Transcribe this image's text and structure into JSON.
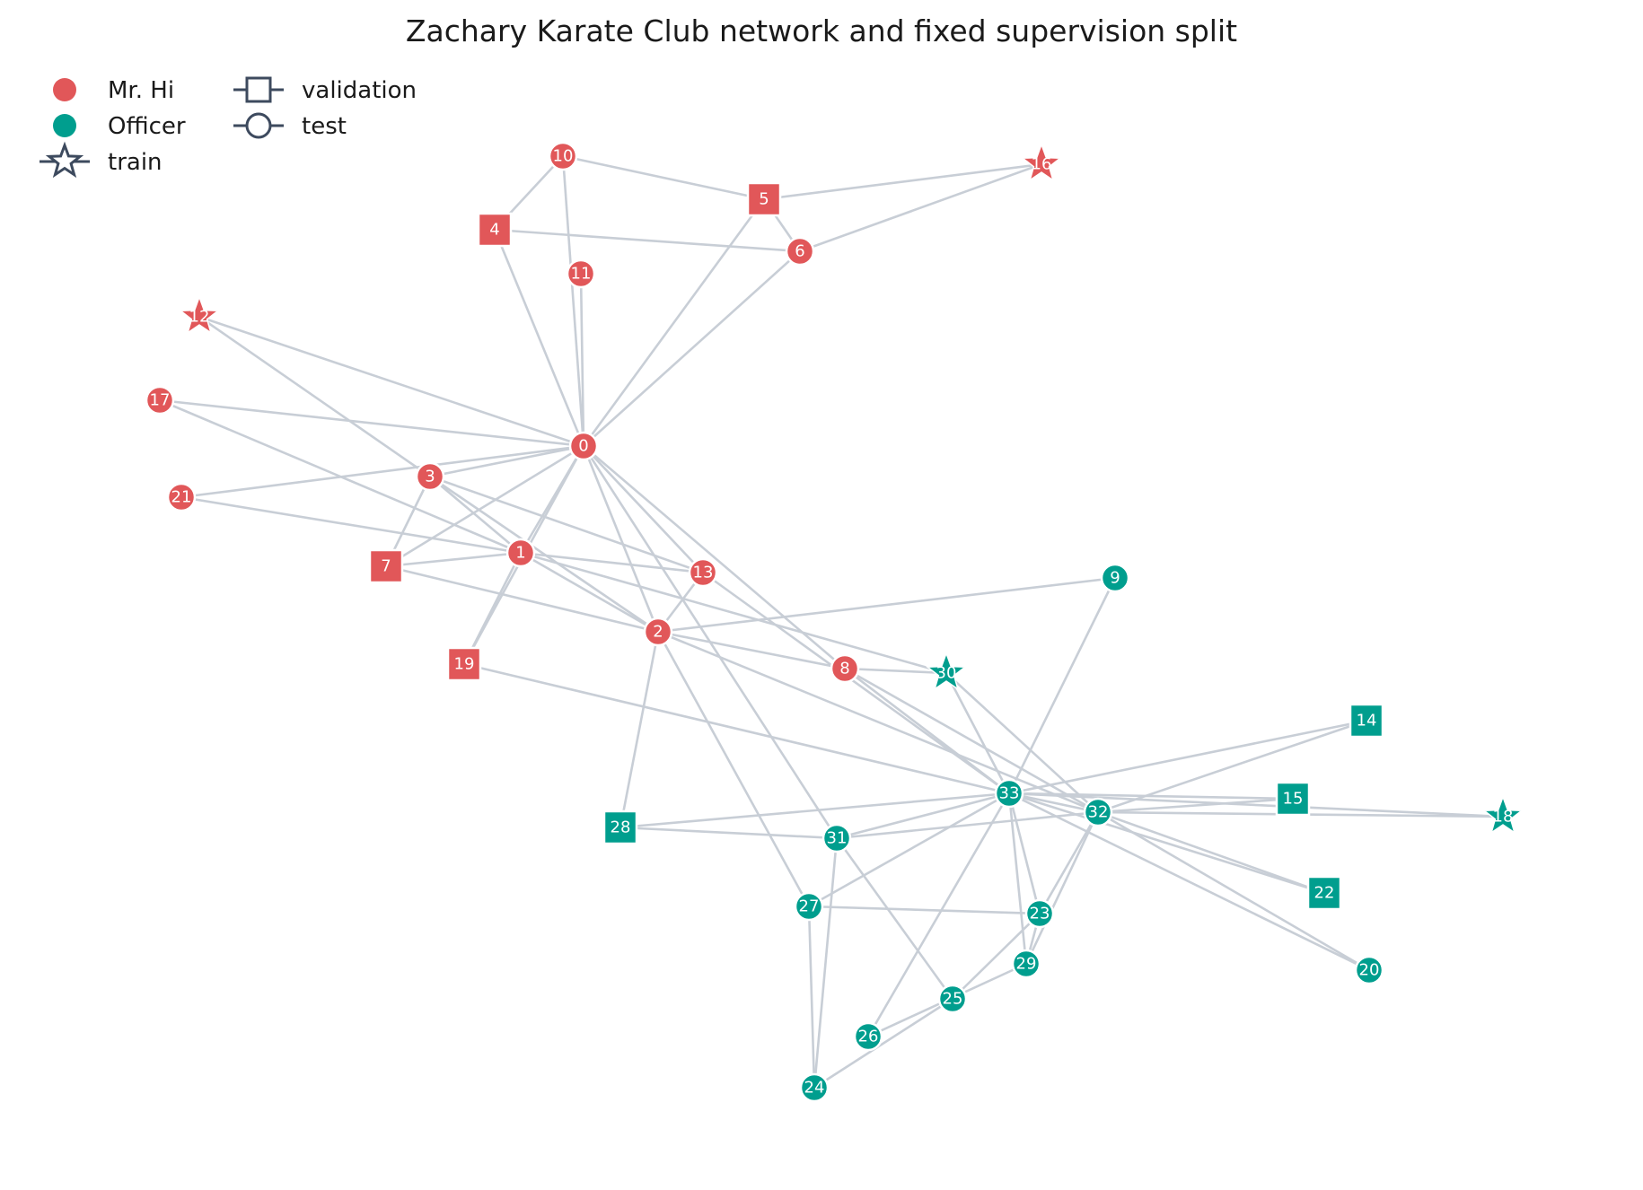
{
  "title": "Zachary Karate Club network and fixed supervision split",
  "colors": {
    "Mr. Hi": "#e15759",
    "Officer": "#009e8e",
    "edge": "#c8ced6",
    "legend_marker": "#3d4a5e",
    "label": "#ffffff"
  },
  "legend": {
    "groups": [
      {
        "label": "Mr. Hi",
        "icon": "filled-circle"
      },
      {
        "label": "Officer",
        "icon": "filled-circle"
      }
    ],
    "splits": [
      {
        "label": "train",
        "icon": "star-line-icon"
      },
      {
        "label": "validation",
        "icon": "square-line-icon"
      },
      {
        "label": "test",
        "icon": "circle-line-icon"
      }
    ]
  },
  "split_shapes": {
    "train": "star",
    "validation": "square",
    "test": "circle"
  },
  "nodes": [
    {
      "id": "0",
      "group": "Mr. Hi",
      "split": "test"
    },
    {
      "id": "1",
      "group": "Mr. Hi",
      "split": "test"
    },
    {
      "id": "2",
      "group": "Mr. Hi",
      "split": "test"
    },
    {
      "id": "3",
      "group": "Mr. Hi",
      "split": "test"
    },
    {
      "id": "4",
      "group": "Mr. Hi",
      "split": "validation"
    },
    {
      "id": "5",
      "group": "Mr. Hi",
      "split": "validation"
    },
    {
      "id": "6",
      "group": "Mr. Hi",
      "split": "test"
    },
    {
      "id": "7",
      "group": "Mr. Hi",
      "split": "validation"
    },
    {
      "id": "8",
      "group": "Mr. Hi",
      "split": "test"
    },
    {
      "id": "9",
      "group": "Officer",
      "split": "test"
    },
    {
      "id": "10",
      "group": "Mr. Hi",
      "split": "test"
    },
    {
      "id": "11",
      "group": "Mr. Hi",
      "split": "test"
    },
    {
      "id": "12",
      "group": "Mr. Hi",
      "split": "train"
    },
    {
      "id": "13",
      "group": "Mr. Hi",
      "split": "test"
    },
    {
      "id": "14",
      "group": "Officer",
      "split": "validation"
    },
    {
      "id": "15",
      "group": "Officer",
      "split": "validation"
    },
    {
      "id": "16",
      "group": "Mr. Hi",
      "split": "train"
    },
    {
      "id": "17",
      "group": "Mr. Hi",
      "split": "test"
    },
    {
      "id": "18",
      "group": "Officer",
      "split": "train"
    },
    {
      "id": "19",
      "group": "Mr. Hi",
      "split": "validation"
    },
    {
      "id": "20",
      "group": "Officer",
      "split": "test"
    },
    {
      "id": "21",
      "group": "Mr. Hi",
      "split": "test"
    },
    {
      "id": "22",
      "group": "Officer",
      "split": "validation"
    },
    {
      "id": "23",
      "group": "Officer",
      "split": "test"
    },
    {
      "id": "24",
      "group": "Officer",
      "split": "test"
    },
    {
      "id": "25",
      "group": "Officer",
      "split": "test"
    },
    {
      "id": "26",
      "group": "Officer",
      "split": "test"
    },
    {
      "id": "27",
      "group": "Officer",
      "split": "test"
    },
    {
      "id": "28",
      "group": "Officer",
      "split": "validation"
    },
    {
      "id": "29",
      "group": "Officer",
      "split": "test"
    },
    {
      "id": "30",
      "group": "Officer",
      "split": "train"
    },
    {
      "id": "31",
      "group": "Officer",
      "split": "test"
    },
    {
      "id": "32",
      "group": "Officer",
      "split": "test"
    },
    {
      "id": "33",
      "group": "Officer",
      "split": "test"
    }
  ],
  "edges": [
    [
      "0",
      "1"
    ],
    [
      "0",
      "2"
    ],
    [
      "0",
      "3"
    ],
    [
      "0",
      "4"
    ],
    [
      "0",
      "5"
    ],
    [
      "0",
      "6"
    ],
    [
      "0",
      "7"
    ],
    [
      "0",
      "8"
    ],
    [
      "0",
      "10"
    ],
    [
      "0",
      "11"
    ],
    [
      "0",
      "12"
    ],
    [
      "0",
      "13"
    ],
    [
      "0",
      "17"
    ],
    [
      "0",
      "19"
    ],
    [
      "0",
      "21"
    ],
    [
      "0",
      "31"
    ],
    [
      "1",
      "2"
    ],
    [
      "1",
      "3"
    ],
    [
      "1",
      "7"
    ],
    [
      "1",
      "13"
    ],
    [
      "1",
      "17"
    ],
    [
      "1",
      "19"
    ],
    [
      "1",
      "21"
    ],
    [
      "1",
      "30"
    ],
    [
      "2",
      "3"
    ],
    [
      "2",
      "7"
    ],
    [
      "2",
      "8"
    ],
    [
      "2",
      "9"
    ],
    [
      "2",
      "13"
    ],
    [
      "2",
      "27"
    ],
    [
      "2",
      "28"
    ],
    [
      "2",
      "32"
    ],
    [
      "3",
      "7"
    ],
    [
      "3",
      "12"
    ],
    [
      "3",
      "13"
    ],
    [
      "4",
      "6"
    ],
    [
      "4",
      "10"
    ],
    [
      "5",
      "6"
    ],
    [
      "5",
      "10"
    ],
    [
      "5",
      "16"
    ],
    [
      "6",
      "16"
    ],
    [
      "8",
      "30"
    ],
    [
      "8",
      "32"
    ],
    [
      "8",
      "33"
    ],
    [
      "9",
      "33"
    ],
    [
      "13",
      "33"
    ],
    [
      "14",
      "32"
    ],
    [
      "14",
      "33"
    ],
    [
      "15",
      "32"
    ],
    [
      "15",
      "33"
    ],
    [
      "18",
      "32"
    ],
    [
      "18",
      "33"
    ],
    [
      "19",
      "33"
    ],
    [
      "20",
      "32"
    ],
    [
      "20",
      "33"
    ],
    [
      "22",
      "32"
    ],
    [
      "22",
      "33"
    ],
    [
      "23",
      "25"
    ],
    [
      "23",
      "27"
    ],
    [
      "23",
      "29"
    ],
    [
      "23",
      "32"
    ],
    [
      "23",
      "33"
    ],
    [
      "24",
      "25"
    ],
    [
      "24",
      "27"
    ],
    [
      "24",
      "31"
    ],
    [
      "25",
      "31"
    ],
    [
      "26",
      "29"
    ],
    [
      "26",
      "33"
    ],
    [
      "27",
      "33"
    ],
    [
      "28",
      "31"
    ],
    [
      "28",
      "33"
    ],
    [
      "29",
      "32"
    ],
    [
      "29",
      "33"
    ],
    [
      "30",
      "32"
    ],
    [
      "30",
      "33"
    ],
    [
      "31",
      "32"
    ],
    [
      "31",
      "33"
    ],
    [
      "32",
      "33"
    ]
  ]
}
